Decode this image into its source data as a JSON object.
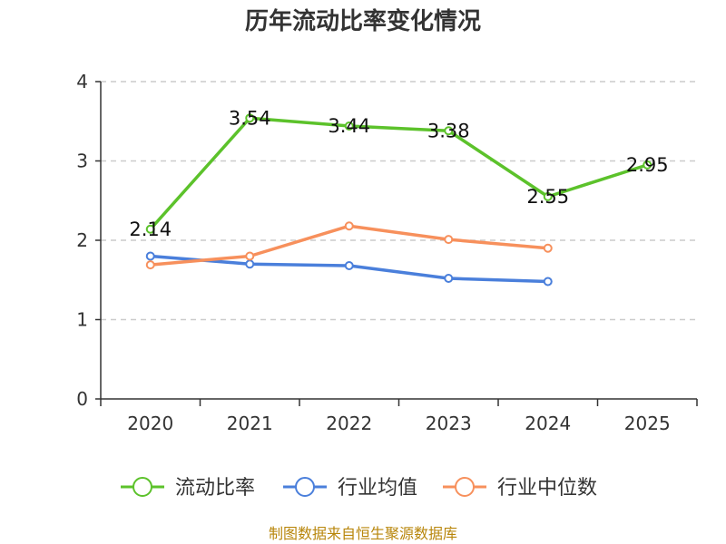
{
  "chart_data": {
    "type": "line",
    "title": "历年流动比率变化情况",
    "categories": [
      "2020",
      "2021",
      "2022",
      "2023",
      "2024",
      "2025"
    ],
    "ylim": [
      0,
      4
    ],
    "yticks": [
      "0",
      "1",
      "2",
      "3",
      "4"
    ],
    "grid": true,
    "legend_position": "bottom",
    "series": [
      {
        "name": "流动比率",
        "color": "#5cc22b",
        "values": [
          2.14,
          3.54,
          3.44,
          3.38,
          2.55,
          2.95
        ],
        "labels": [
          "2.14",
          "3.54",
          "3.44",
          "3.38",
          "2.55",
          "2.95"
        ]
      },
      {
        "name": "行业均值",
        "color": "#4a7fdb",
        "values": [
          1.8,
          1.7,
          1.68,
          1.52,
          1.48,
          null
        ]
      },
      {
        "name": "行业中位数",
        "color": "#f7905c",
        "values": [
          1.69,
          1.8,
          2.18,
          2.01,
          1.9,
          null
        ]
      }
    ],
    "source": "制图数据来自恒生聚源数据库"
  }
}
